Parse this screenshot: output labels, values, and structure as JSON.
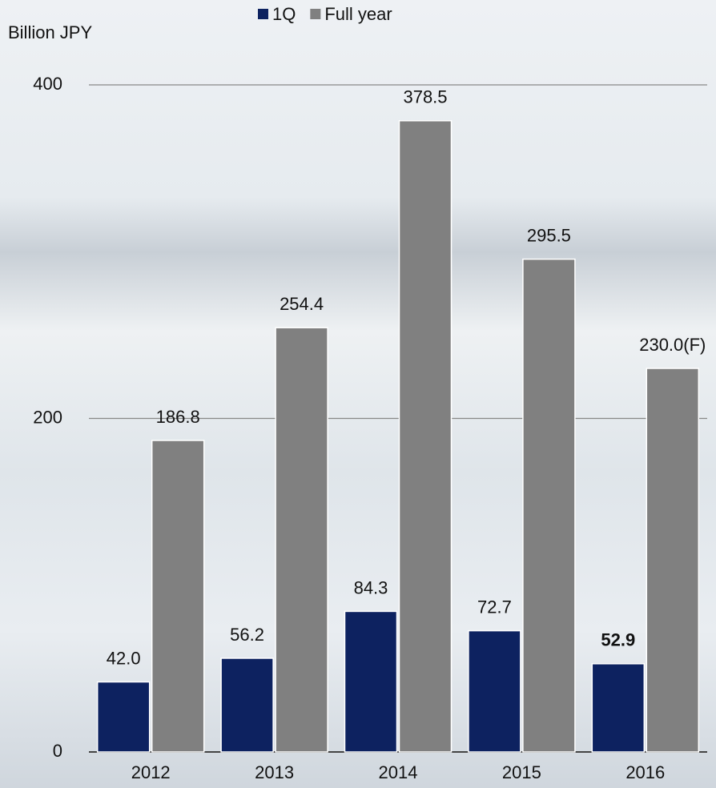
{
  "chart_data": {
    "type": "bar",
    "y_label": "Billion JPY",
    "categories": [
      "2012",
      "2013",
      "2014",
      "2015",
      "2016"
    ],
    "series": [
      {
        "name": "1Q",
        "color": "#0d2260",
        "values": [
          42.0,
          56.2,
          84.3,
          72.7,
          52.9
        ],
        "value_labels": [
          "42.0",
          "56.2",
          "84.3",
          "72.7",
          "52.9"
        ]
      },
      {
        "name": "Full year",
        "color": "#808080",
        "values": [
          186.8,
          254.4,
          378.5,
          295.5,
          230.0
        ],
        "value_labels": [
          "186.8",
          "254.4",
          "378.5",
          "295.5",
          "230.0(F)"
        ]
      }
    ],
    "ylim": [
      0,
      400
    ],
    "yticks": [
      0,
      200,
      400
    ],
    "grid": true
  }
}
